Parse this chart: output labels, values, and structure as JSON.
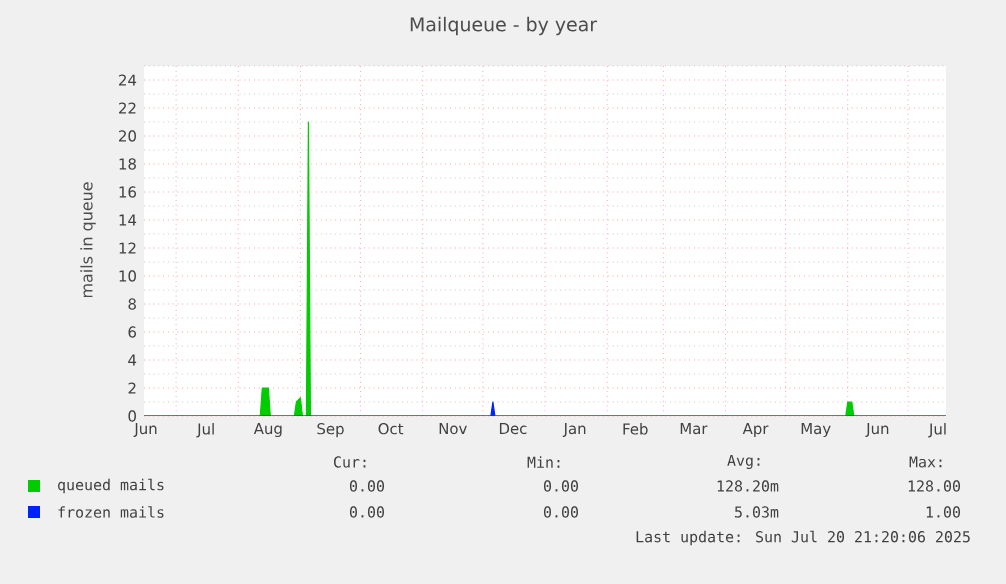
{
  "chart_data": {
    "type": "area",
    "title": "Mailqueue - by year",
    "ylabel": "mails in queue",
    "xlim": [
      "2024-06-15",
      "2025-07-20"
    ],
    "ylim": [
      0,
      25
    ],
    "xticks": [
      {
        "value": "2024-06-16",
        "label": "Jun"
      },
      {
        "value": "2024-07-16",
        "label": "Jul"
      },
      {
        "value": "2024-08-16",
        "label": "Aug"
      },
      {
        "value": "2024-09-16",
        "label": "Sep"
      },
      {
        "value": "2024-10-16",
        "label": "Oct"
      },
      {
        "value": "2024-11-16",
        "label": "Nov"
      },
      {
        "value": "2024-12-16",
        "label": "Dec"
      },
      {
        "value": "2025-01-16",
        "label": "Jan"
      },
      {
        "value": "2025-02-15",
        "label": "Feb"
      },
      {
        "value": "2025-03-16",
        "label": "Mar"
      },
      {
        "value": "2025-04-16",
        "label": "Apr"
      },
      {
        "value": "2025-05-16",
        "label": "May"
      },
      {
        "value": "2025-06-16",
        "label": "Jun"
      },
      {
        "value": "2025-07-16",
        "label": "Jul"
      },
      {
        "value": "2024-07-01",
        "label": null
      },
      {
        "value": "2024-08-01",
        "label": null
      },
      {
        "value": "2024-09-01",
        "label": null
      },
      {
        "value": "2024-10-01",
        "label": null
      },
      {
        "value": "2024-11-01",
        "label": null
      },
      {
        "value": "2024-12-01",
        "label": null
      },
      {
        "value": "2025-01-01",
        "label": null
      },
      {
        "value": "2025-02-01",
        "label": null
      },
      {
        "value": "2025-03-01",
        "label": null
      },
      {
        "value": "2025-04-01",
        "label": null
      },
      {
        "value": "2025-05-01",
        "label": null
      },
      {
        "value": "2025-06-01",
        "label": null
      },
      {
        "value": "2025-07-01",
        "label": null
      }
    ],
    "yticks": [
      0,
      2,
      4,
      6,
      8,
      10,
      12,
      14,
      16,
      18,
      20,
      22,
      24,
      {
        "value": 1,
        "label": null
      },
      {
        "value": 3,
        "label": null
      },
      {
        "value": 5,
        "label": null
      },
      {
        "value": 7,
        "label": null
      },
      {
        "value": 9,
        "label": null
      },
      {
        "value": 11,
        "label": null
      },
      {
        "value": 13,
        "label": null
      },
      {
        "value": 15,
        "label": null
      },
      {
        "value": 17,
        "label": null
      },
      {
        "value": 19,
        "label": null
      },
      {
        "value": 21,
        "label": null
      },
      {
        "value": 23,
        "label": null
      },
      {
        "value": 25,
        "label": null
      }
    ],
    "grid": true,
    "legend": "bottom",
    "series": [
      {
        "name": "queued mails",
        "color": "#00cc00",
        "x": [
          "2024-06-15",
          "2024-08-12",
          "2024-08-13",
          "2024-08-16",
          "2024-08-17",
          "2024-08-29",
          "2024-08-30",
          "2024-09-01",
          "2024-09-02",
          "2024-09-04",
          "2024-09-05",
          "2024-09-06",
          "2025-05-31",
          "2025-06-01",
          "2025-06-03",
          "2025-06-04",
          "2025-07-20"
        ],
        "values": [
          0,
          0,
          2,
          2,
          0,
          0,
          1,
          1.3,
          0,
          0,
          21,
          0,
          0,
          1,
          1,
          0,
          0
        ]
      },
      {
        "name": "frozen mails",
        "color": "#0022ff",
        "x": [
          "2024-06-15",
          "2024-12-05",
          "2024-12-06",
          "2024-12-07",
          "2025-07-20"
        ],
        "values": [
          0,
          0,
          1,
          0,
          0
        ]
      }
    ],
    "annotations": [
      "Cur:",
      "Min:",
      "Avg:",
      "Max:",
      "0.00",
      "0.00",
      "128.20m",
      "128.00",
      "0.00",
      "0.00",
      "5.03m",
      "1.00",
      "Last update: Sun Jul 20 21:20:06 2025"
    ]
  }
}
